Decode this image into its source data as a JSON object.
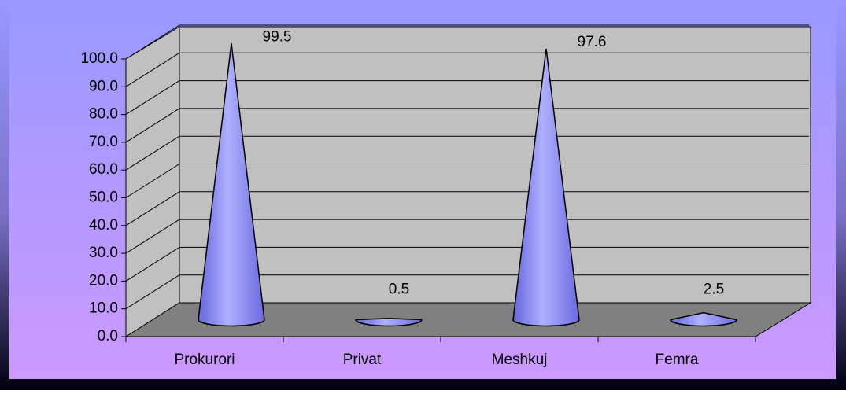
{
  "chart_data": {
    "type": "cone",
    "categories": [
      "Prokurori",
      "Privat",
      "Meshkuj",
      "Femra"
    ],
    "values": [
      99.5,
      0.5,
      97.6,
      2.5
    ],
    "color": "#8080ff",
    "ylim": [
      0,
      100
    ],
    "yticks": [
      {
        "value": 0,
        "label": "0.0"
      },
      {
        "value": 10,
        "label": "10.0"
      },
      {
        "value": 20,
        "label": "20.0"
      },
      {
        "value": 30,
        "label": "30.0"
      },
      {
        "value": 40,
        "label": "40.0"
      },
      {
        "value": 50,
        "label": "50.0"
      },
      {
        "value": 60,
        "label": "60.0"
      },
      {
        "value": 70,
        "label": "70.0"
      },
      {
        "value": 80,
        "label": "80.0"
      },
      {
        "value": 90,
        "label": "90.0"
      },
      {
        "value": 100,
        "label": "100.0"
      }
    ],
    "grid": true
  }
}
